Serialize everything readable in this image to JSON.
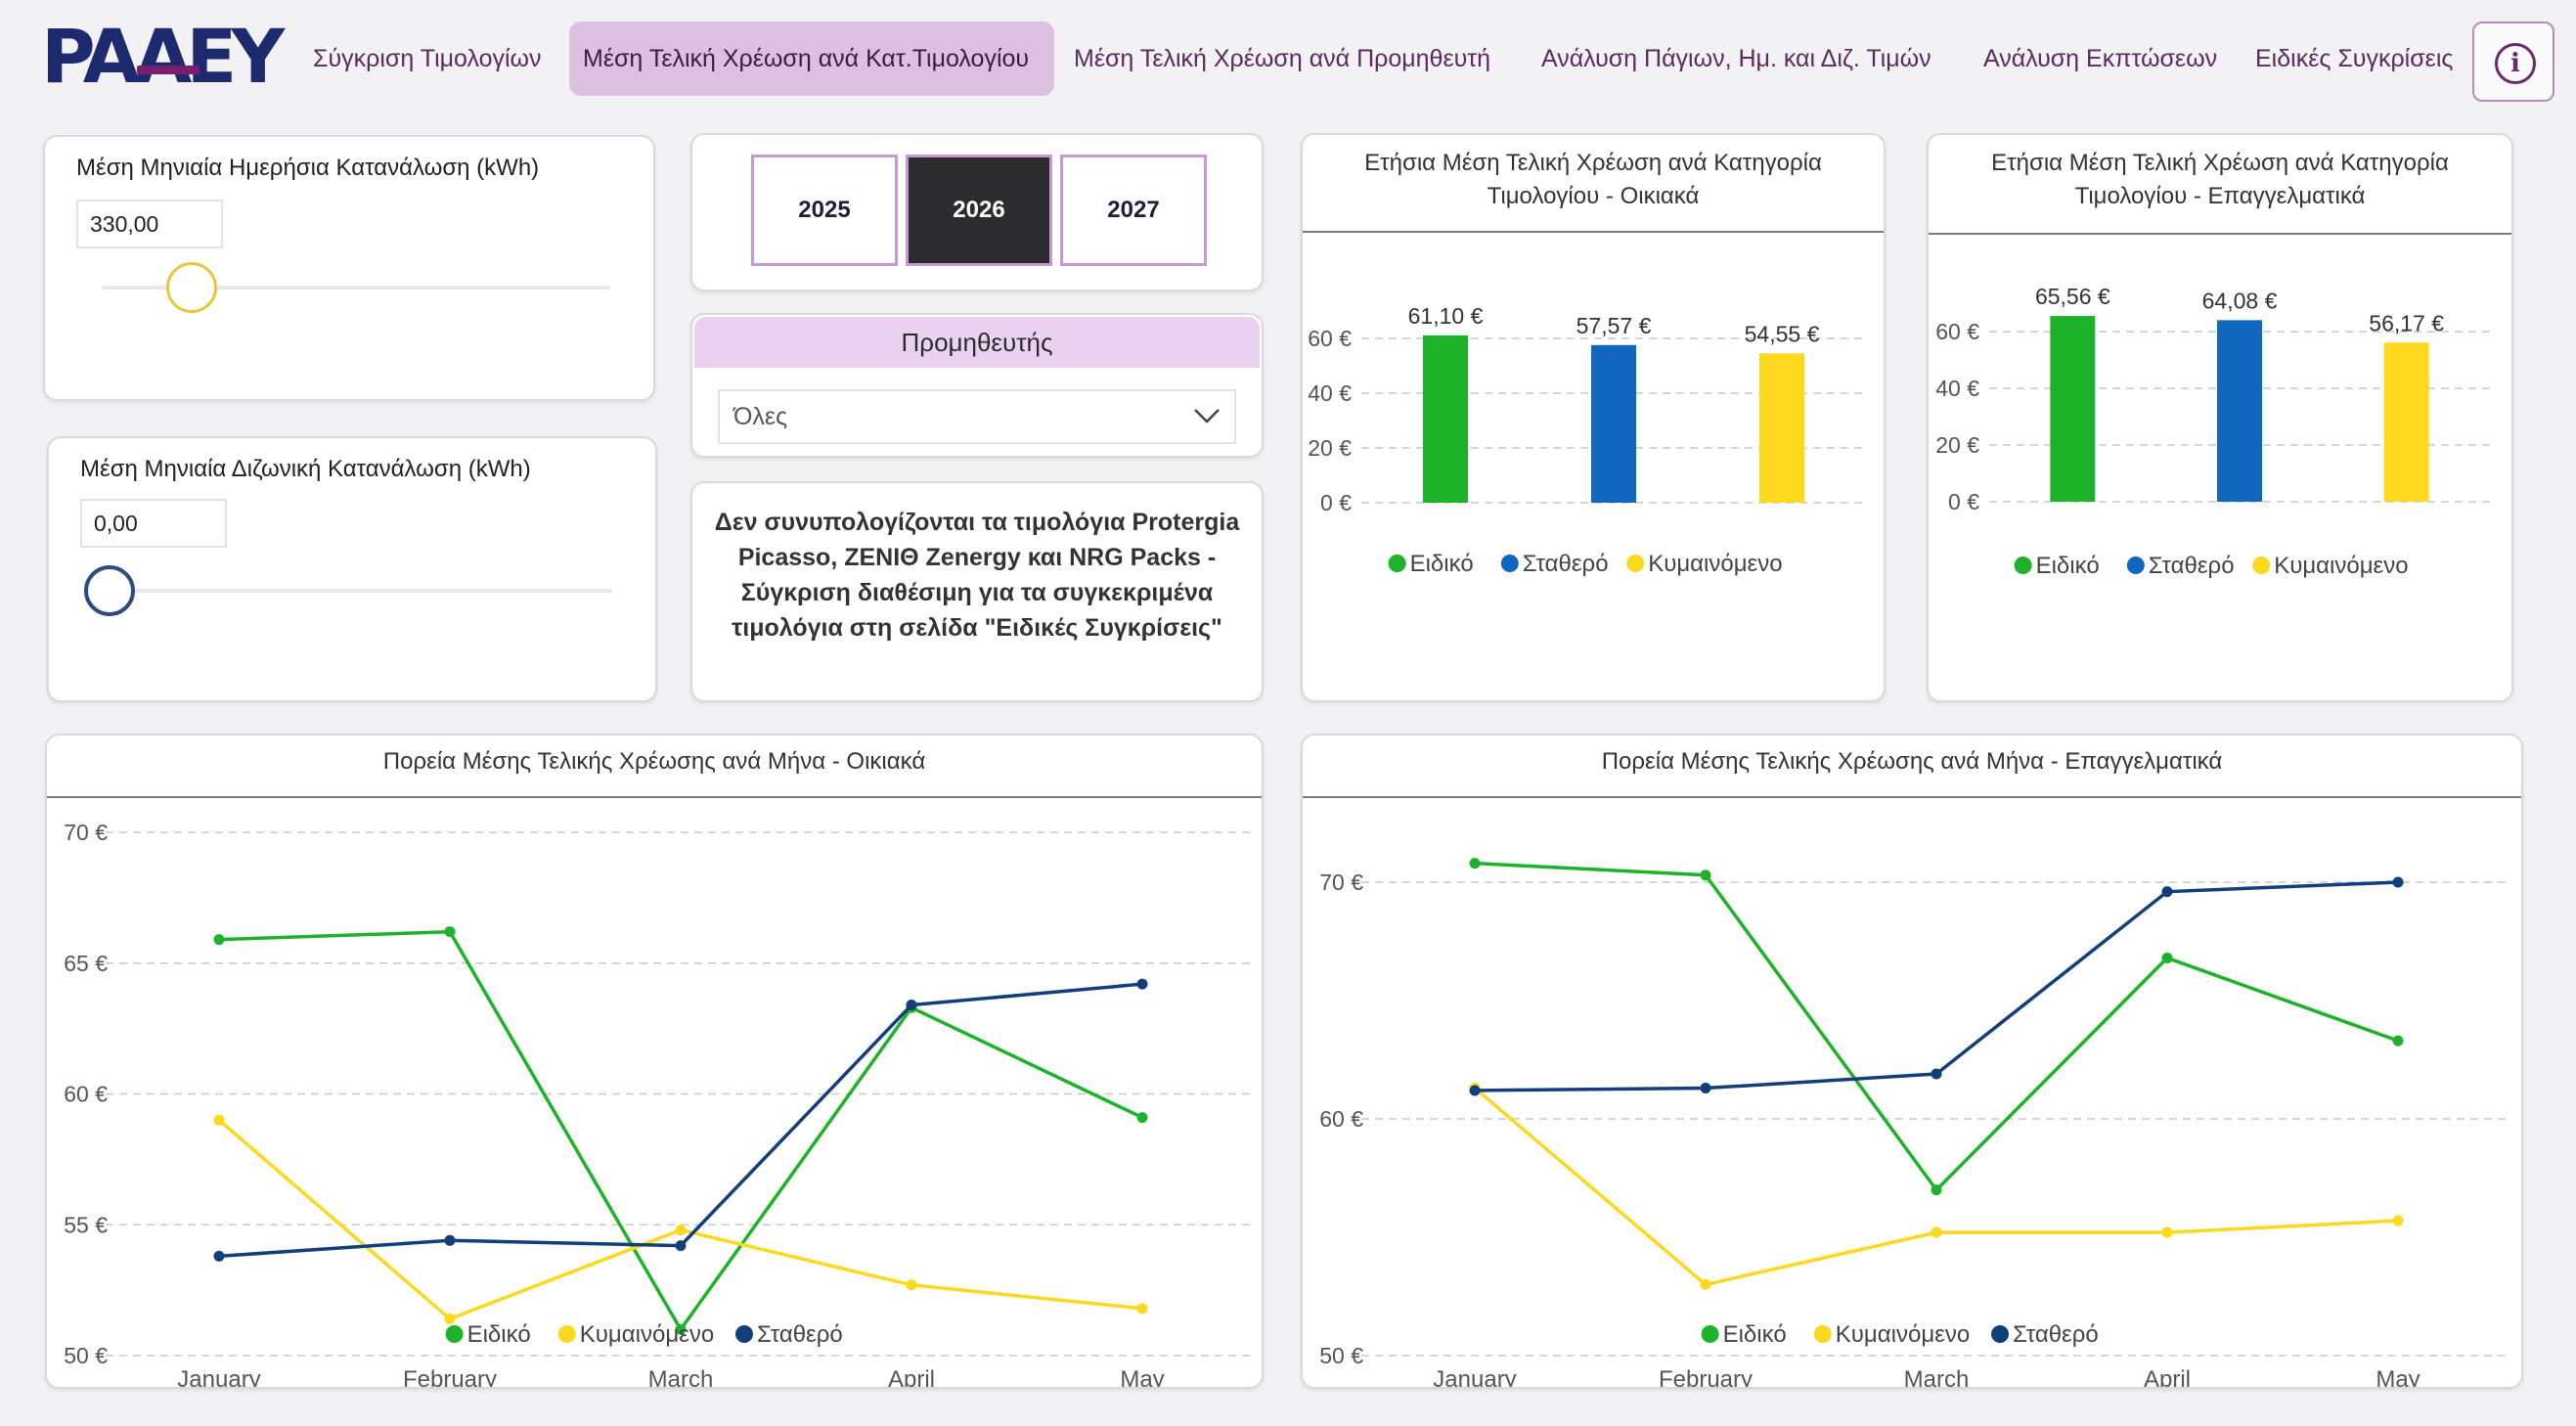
{
  "app": {
    "logo_text": "PAAEY",
    "brand_colors": {
      "navy": "#1e2a6e",
      "purple": "#7a1f6f",
      "active_tab": "#dcc0e0"
    }
  },
  "nav": {
    "tabs": [
      {
        "label": "Σύγκριση Τιμολογίων",
        "active": false
      },
      {
        "label": "Μέση Τελική Χρέωση ανά Κατ.Τιμολογίου",
        "active": true
      },
      {
        "label": "Μέση Τελική Χρέωση ανά Προμηθευτή",
        "active": false
      },
      {
        "label": "Ανάλυση Πάγιων, Ημ. και Διζ. Τιμών",
        "active": false
      },
      {
        "label": "Ανάλυση Εκπτώσεων",
        "active": false
      },
      {
        "label": "Ειδικές Συγκρίσεις",
        "active": false
      }
    ],
    "info_icon": "info-circle-icon",
    "info_glyph": "i"
  },
  "day_consumption": {
    "title": "Μέση Μηνιαία Ημερήσια Κατανάλωση (kWh)",
    "value": "330,00",
    "slider_fraction": 0.17,
    "thumb_color": "#e8c63a"
  },
  "dual_consumption": {
    "title": "Μέση Μηνιαία Διζωνική Κατανάλωση (kWh)",
    "value": "0,00",
    "slider_fraction": 0.0,
    "thumb_color": "#2b4c7e"
  },
  "years": {
    "options": [
      "2025",
      "2026",
      "2027"
    ],
    "selected": "2026"
  },
  "supplier": {
    "header": "Προμηθευτής",
    "selected": "Όλες"
  },
  "note": {
    "text": "Δεν συνυπολογίζονται τα τιμολόγια Protergia Picasso, ZENIΘ Zenergy και NRG Packs - Σύγκριση διαθέσιμη για τα συγκεκριμένα τιμολόγια στη σελίδα \"Ειδικές Συγκρίσεις\""
  },
  "series_colors": {
    "Ειδικό": "#1db229",
    "Σταθερό": "#1166c0",
    "Κυμαινόμενο": "#fcd81e",
    "Σταθερό_line": "#123e7a"
  },
  "chart_data": [
    {
      "type": "bar",
      "title": "Ετήσια Μέση Τελική Χρέωση ανά Κατηγορία Τιμολογίου - Οικιακά",
      "categories": [
        "Ειδικό",
        "Σταθερό",
        "Κυμαινόμενο"
      ],
      "values": [
        61.1,
        57.57,
        54.55
      ],
      "value_labels": [
        "61,10 €",
        "57,57 €",
        "54,55 €"
      ],
      "yticks": [
        "0 €",
        "20 €",
        "40 €",
        "60 €"
      ],
      "ylim": [
        0,
        65
      ],
      "legend": [
        "Ειδικό",
        "Σταθερό",
        "Κυμαινόμενο"
      ],
      "legend_position": "bottom",
      "grid": true
    },
    {
      "type": "bar",
      "title": "Ετήσια Μέση Τελική Χρέωση ανά Κατηγορία Τιμολογίου - Επαγγελματικά",
      "categories": [
        "Ειδικό",
        "Σταθερό",
        "Κυμαινόμενο"
      ],
      "values": [
        65.56,
        64.08,
        56.17
      ],
      "value_labels": [
        "65,56 €",
        "64,08 €",
        "56,17 €"
      ],
      "yticks": [
        "0 €",
        "20 €",
        "40 €",
        "60 €"
      ],
      "ylim": [
        0,
        68
      ],
      "legend": [
        "Ειδικό",
        "Σταθερό",
        "Κυμαινόμενο"
      ],
      "legend_position": "bottom",
      "grid": true
    },
    {
      "type": "line",
      "title": "Πορεία Μέσης Τελικής Χρέωσης ανά Μήνα - Οικιακά",
      "x": [
        "January",
        "February",
        "March",
        "April",
        "May"
      ],
      "series": [
        {
          "name": "Ειδικό",
          "values": [
            65.9,
            66.2,
            51.0,
            63.3,
            59.1
          ]
        },
        {
          "name": "Κυμαινόμενο",
          "values": [
            59.0,
            51.4,
            54.8,
            52.7,
            51.8
          ]
        },
        {
          "name": "Σταθερό",
          "values": [
            53.8,
            54.4,
            54.2,
            63.4,
            64.2
          ]
        }
      ],
      "ylim": [
        50,
        70
      ],
      "yticks": [
        "50 €",
        "55 €",
        "60 €",
        "65 €",
        "70 €"
      ],
      "legend": [
        "Ειδικό",
        "Κυμαινόμενο",
        "Σταθερό"
      ],
      "legend_position": "bottom",
      "grid": true
    },
    {
      "type": "line",
      "title": "Πορεία Μέσης Τελικής Χρέωσης ανά Μήνα - Επαγγελματικά",
      "x": [
        "January",
        "February",
        "March",
        "April",
        "May"
      ],
      "series": [
        {
          "name": "Ειδικό",
          "values": [
            70.8,
            70.3,
            57.0,
            66.8,
            63.3
          ]
        },
        {
          "name": "Κυμαινόμενο",
          "values": [
            61.3,
            53.0,
            55.2,
            55.2,
            55.7
          ]
        },
        {
          "name": "Σταθερό",
          "values": [
            61.2,
            61.3,
            61.9,
            69.6,
            70.0
          ]
        }
      ],
      "ylim": [
        50,
        70
      ],
      "yticks": [
        "50 €",
        "60 €",
        "70 €"
      ],
      "legend": [
        "Ειδικό",
        "Κυμαινόμενο",
        "Σταθερό"
      ],
      "legend_position": "bottom",
      "grid": true
    }
  ]
}
